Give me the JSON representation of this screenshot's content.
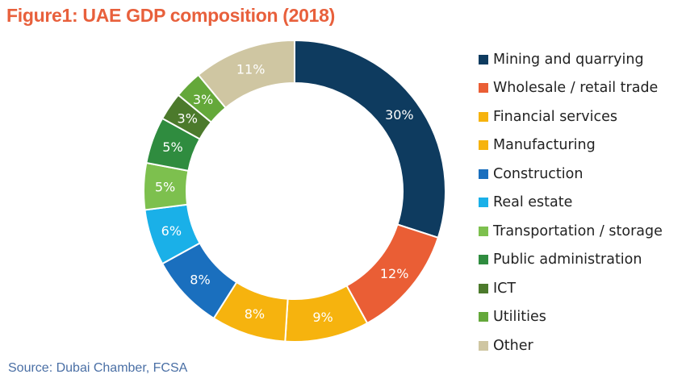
{
  "title": "Figure1: UAE GDP composition (2018)",
  "source": "Source: Dubai Chamber, FCSA",
  "chart_data": {
    "type": "pie",
    "title": "Figure1: UAE GDP composition (2018)",
    "categories": [
      "Mining and quarrying",
      "Wholesale / retail trade",
      "Financial services",
      "Manufacturing",
      "Construction",
      "Real estate",
      "Transportation / storage",
      "Public administration",
      "ICT",
      "Utilities",
      "Other"
    ],
    "values": [
      30,
      12,
      9,
      8,
      8,
      6,
      5,
      5,
      3,
      3,
      11
    ],
    "labels": [
      "30%",
      "12%",
      "9%",
      "8%",
      "8%",
      "6%",
      "5%",
      "5%",
      "3%",
      "3%",
      "11%"
    ],
    "colors": [
      "#0e3b5f",
      "#ea5e35",
      "#f6b30e",
      "#f6b30e",
      "#1a6fbe",
      "#1ab0e8",
      "#7dc04e",
      "#2f8c3f",
      "#4c7a2c",
      "#64a83a",
      "#cfc6a2"
    ],
    "label_colors": [
      "#ffffff",
      "#ffffff",
      "#ffffff",
      "#ffffff",
      "#ffffff",
      "#ffffff",
      "#ffffff",
      "#ffffff",
      "#ffffff",
      "#ffffff",
      "#ffffff"
    ],
    "legend_position": "right",
    "hole": true
  }
}
